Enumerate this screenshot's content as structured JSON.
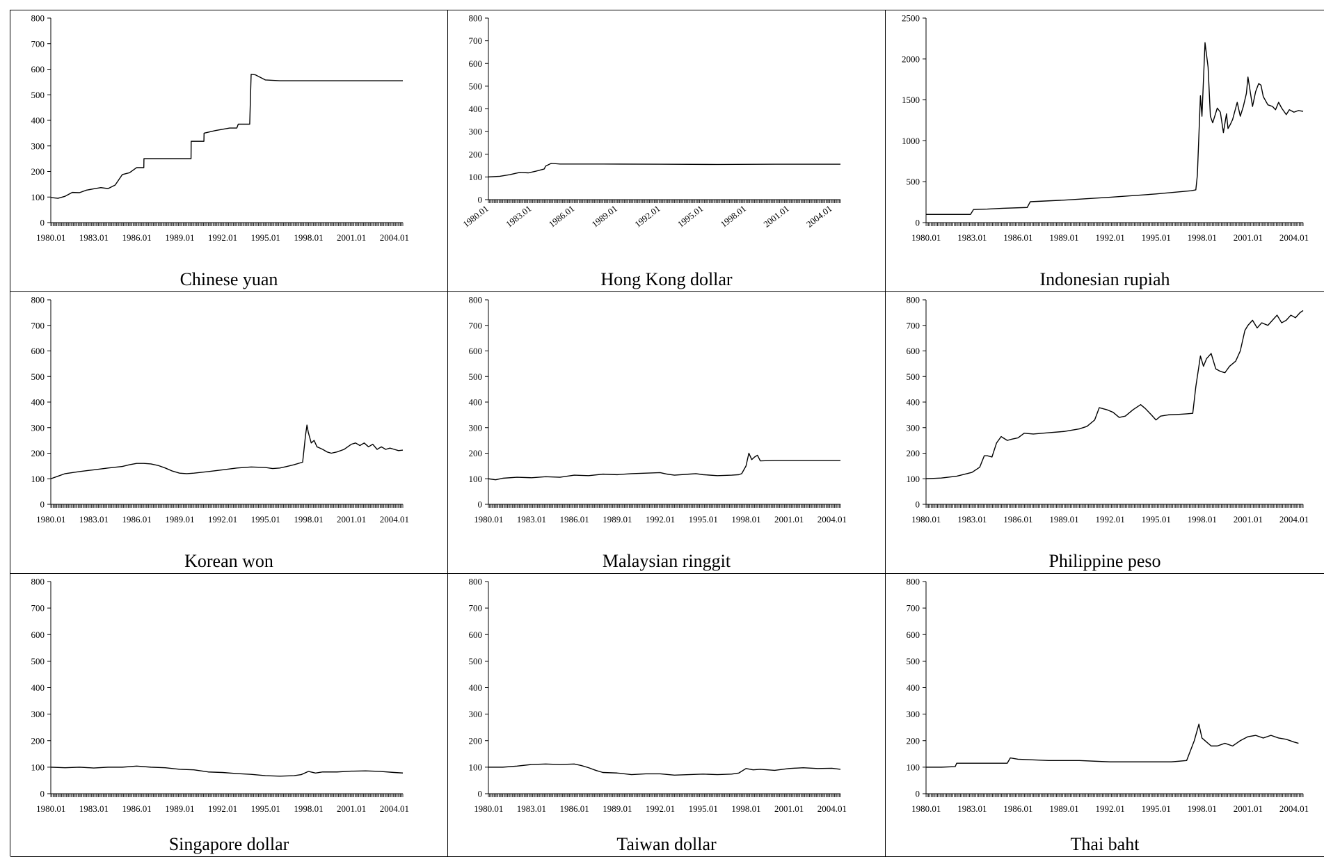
{
  "chart_data": [
    {
      "type": "line",
      "title": "Chinese yuan",
      "ylim": [
        0,
        800
      ],
      "yticks": [
        0,
        100,
        200,
        300,
        400,
        500,
        600,
        700,
        800
      ],
      "xticks": [
        "1980.01",
        "1983.01",
        "1986.01",
        "1989.01",
        "1992.01",
        "1995.01",
        "1998.01",
        "2001.01",
        "2004.01"
      ],
      "series": [
        {
          "x": [
            1980.0,
            1980.5,
            1981.0,
            1981.5,
            1982.0,
            1982.5,
            1983.0,
            1983.5,
            1984.0,
            1984.5,
            1985.0,
            1985.5,
            1986.0,
            1986.5,
            1986.51,
            1987.5,
            1988.5,
            1989.8,
            1989.81,
            1990.7,
            1990.71,
            1991.5,
            1992.5,
            1993.0,
            1993.1,
            1993.9,
            1994.0,
            1994.3,
            1995.0,
            1996.0,
            1998.0,
            2001.0,
            2004.6
          ],
          "y": [
            98,
            95,
            103,
            118,
            117,
            127,
            132,
            137,
            133,
            147,
            188,
            195,
            215,
            215,
            250,
            250,
            250,
            250,
            318,
            318,
            350,
            360,
            370,
            370,
            385,
            385,
            580,
            578,
            558,
            555,
            555,
            555,
            555
          ]
        }
      ]
    },
    {
      "type": "line",
      "title": "Hong Kong dollar",
      "ylim": [
        0,
        800
      ],
      "yticks": [
        0,
        100,
        200,
        300,
        400,
        500,
        600,
        700,
        800
      ],
      "xticks": [
        "1980.01",
        "1983.01",
        "1986.01",
        "1989.01",
        "1992.01",
        "1995.01",
        "1998.01",
        "2001.01",
        "2004.01"
      ],
      "series": [
        {
          "x": [
            1980.0,
            1980.8,
            1981.5,
            1982.2,
            1982.8,
            1983.3,
            1983.9,
            1984.0,
            1984.4,
            1985.0,
            1988.0,
            1992.0,
            1996.0,
            2000.0,
            2004.6
          ],
          "y": [
            100,
            103,
            110,
            120,
            118,
            125,
            135,
            148,
            160,
            157,
            157,
            156,
            155,
            156,
            156
          ]
        }
      ]
    },
    {
      "type": "line",
      "title": "Indonesian rupiah",
      "ylim": [
        0,
        2500
      ],
      "yticks": [
        0,
        500,
        1000,
        1500,
        2000,
        2500
      ],
      "xticks": [
        "1980.01",
        "1983.01",
        "1986.01",
        "1989.01",
        "1992.01",
        "1995.01",
        "1998.01",
        "2001.01",
        "2004.01"
      ],
      "series": [
        {
          "x": [
            1980.0,
            1982.9,
            1983.1,
            1984.0,
            1985.0,
            1986.6,
            1986.8,
            1989.0,
            1992.0,
            1995.0,
            1997.3,
            1997.6,
            1997.7,
            1997.9,
            1998.0,
            1998.2,
            1998.4,
            1998.55,
            1998.7,
            1999.0,
            1999.2,
            1999.4,
            1999.6,
            1999.7,
            1999.85,
            2000.0,
            2000.3,
            2000.5,
            2000.7,
            2000.9,
            2001.0,
            2001.3,
            2001.5,
            2001.7,
            2001.85,
            2002.0,
            2002.3,
            2002.6,
            2002.8,
            2003.0,
            2003.2,
            2003.5,
            2003.7,
            2004.0,
            2004.3,
            2004.6
          ],
          "y": [
            100,
            100,
            160,
            165,
            175,
            185,
            255,
            275,
            310,
            350,
            390,
            400,
            580,
            1550,
            1300,
            2200,
            1900,
            1300,
            1220,
            1400,
            1350,
            1100,
            1330,
            1150,
            1200,
            1260,
            1470,
            1300,
            1420,
            1580,
            1780,
            1420,
            1600,
            1700,
            1680,
            1540,
            1440,
            1420,
            1380,
            1470,
            1400,
            1320,
            1380,
            1350,
            1370,
            1360
          ]
        }
      ]
    },
    {
      "type": "line",
      "title": "Korean won",
      "ylim": [
        0,
        800
      ],
      "yticks": [
        0,
        100,
        200,
        300,
        400,
        500,
        600,
        700,
        800
      ],
      "xticks": [
        "1980.01",
        "1983.01",
        "1986.01",
        "1989.01",
        "1992.01",
        "1995.01",
        "1998.01",
        "2001.01",
        "2004.01"
      ],
      "series": [
        {
          "x": [
            1980.0,
            1980.5,
            1981.0,
            1982.0,
            1983.0,
            1984.0,
            1985.0,
            1985.5,
            1986.0,
            1986.5,
            1987.0,
            1987.5,
            1988.0,
            1988.5,
            1989.0,
            1989.5,
            1990.0,
            1991.0,
            1992.0,
            1993.0,
            1994.0,
            1995.0,
            1995.5,
            1996.0,
            1996.5,
            1997.0,
            1997.6,
            1997.8,
            1997.9,
            1998.0,
            1998.2,
            1998.4,
            1998.6,
            1998.8,
            1999.0,
            1999.3,
            1999.6,
            2000.0,
            2000.5,
            2001.0,
            2001.3,
            2001.6,
            2001.9,
            2002.2,
            2002.5,
            2002.8,
            2003.1,
            2003.4,
            2003.7,
            2004.0,
            2004.3,
            2004.6
          ],
          "y": [
            100,
            110,
            120,
            128,
            135,
            142,
            148,
            155,
            160,
            160,
            158,
            152,
            142,
            130,
            122,
            120,
            122,
            128,
            135,
            142,
            146,
            144,
            140,
            142,
            148,
            155,
            165,
            270,
            310,
            280,
            240,
            250,
            225,
            220,
            215,
            205,
            200,
            205,
            215,
            235,
            240,
            230,
            240,
            225,
            235,
            215,
            225,
            215,
            220,
            215,
            210,
            212
          ]
        }
      ]
    },
    {
      "type": "line",
      "title": "Malaysian ringgit",
      "ylim": [
        0,
        800
      ],
      "yticks": [
        0,
        100,
        200,
        300,
        400,
        500,
        600,
        700,
        800
      ],
      "xticks": [
        "1980.01",
        "1983.01",
        "1986.01",
        "1989.01",
        "1992.01",
        "1995.01",
        "1998.01",
        "2001.01",
        "2004.01"
      ],
      "series": [
        {
          "x": [
            1980.0,
            1980.5,
            1981.0,
            1982.0,
            1983.0,
            1984.0,
            1985.0,
            1986.0,
            1987.0,
            1988.0,
            1989.0,
            1990.0,
            1991.0,
            1992.0,
            1992.5,
            1993.0,
            1994.0,
            1994.5,
            1995.0,
            1996.0,
            1997.0,
            1997.5,
            1997.7,
            1998.0,
            1998.2,
            1998.4,
            1998.6,
            1998.8,
            1999.0,
            2000.0,
            2001.0,
            2002.0,
            2003.0,
            2004.6
          ],
          "y": [
            100,
            96,
            102,
            106,
            104,
            108,
            106,
            114,
            112,
            118,
            116,
            120,
            122,
            124,
            118,
            114,
            118,
            120,
            116,
            112,
            114,
            116,
            120,
            150,
            200,
            175,
            185,
            192,
            170,
            172,
            172,
            172,
            172,
            172
          ]
        }
      ]
    },
    {
      "type": "line",
      "title": "Philippine peso",
      "ylim": [
        0,
        800
      ],
      "yticks": [
        0,
        100,
        200,
        300,
        400,
        500,
        600,
        700,
        800
      ],
      "xticks": [
        "1980.01",
        "1983.01",
        "1986.01",
        "1989.01",
        "1992.01",
        "1995.01",
        "1998.01",
        "2001.01",
        "2004.01"
      ],
      "series": [
        {
          "x": [
            1980.0,
            1981.0,
            1982.0,
            1983.0,
            1983.5,
            1983.8,
            1984.0,
            1984.3,
            1984.6,
            1984.9,
            1985.3,
            1985.6,
            1986.0,
            1986.4,
            1987.0,
            1988.0,
            1989.0,
            1990.0,
            1990.5,
            1991.0,
            1991.3,
            1991.8,
            1992.2,
            1992.6,
            1993.0,
            1993.5,
            1994.0,
            1994.3,
            1994.7,
            1995.0,
            1995.3,
            1995.8,
            1996.5,
            1997.0,
            1997.4,
            1997.6,
            1997.9,
            1998.1,
            1998.3,
            1998.6,
            1998.9,
            1999.2,
            1999.5,
            1999.8,
            2000.2,
            2000.5,
            2000.8,
            2001.0,
            2001.3,
            2001.6,
            2001.9,
            2002.3,
            2002.6,
            2002.9,
            2003.2,
            2003.5,
            2003.8,
            2004.1,
            2004.4,
            2004.6
          ],
          "y": [
            100,
            103,
            110,
            125,
            145,
            190,
            190,
            185,
            240,
            265,
            250,
            255,
            260,
            278,
            275,
            280,
            285,
            295,
            305,
            330,
            378,
            370,
            360,
            340,
            345,
            370,
            390,
            375,
            350,
            330,
            345,
            350,
            352,
            354,
            356,
            460,
            580,
            540,
            570,
            590,
            530,
            520,
            515,
            540,
            560,
            600,
            680,
            700,
            720,
            690,
            710,
            700,
            720,
            740,
            710,
            720,
            740,
            730,
            750,
            758
          ]
        }
      ]
    },
    {
      "type": "line",
      "title": "Singapore dollar",
      "ylim": [
        0,
        800
      ],
      "yticks": [
        0,
        100,
        200,
        300,
        400,
        500,
        600,
        700,
        800
      ],
      "xticks": [
        "1980.01",
        "1983.01",
        "1986.01",
        "1989.01",
        "1992.01",
        "1995.01",
        "1998.01",
        "2001.01",
        "2004.01"
      ],
      "series": [
        {
          "x": [
            1980.0,
            1981.0,
            1982.0,
            1983.0,
            1984.0,
            1985.0,
            1986.0,
            1987.0,
            1988.0,
            1989.0,
            1990.0,
            1991.0,
            1992.0,
            1993.0,
            1994.0,
            1995.0,
            1996.0,
            1997.0,
            1997.5,
            1998.0,
            1998.5,
            1999.0,
            2000.0,
            2001.0,
            2002.0,
            2003.0,
            2004.0,
            2004.6
          ],
          "y": [
            100,
            98,
            100,
            97,
            100,
            100,
            104,
            100,
            98,
            92,
            90,
            82,
            80,
            76,
            73,
            68,
            66,
            68,
            72,
            84,
            78,
            82,
            82,
            85,
            86,
            84,
            80,
            78
          ]
        }
      ]
    },
    {
      "type": "line",
      "title": "Taiwan dollar",
      "ylim": [
        0,
        800
      ],
      "yticks": [
        0,
        100,
        200,
        300,
        400,
        500,
        600,
        700,
        800
      ],
      "xticks": [
        "1980.01",
        "1983.01",
        "1986.01",
        "1989.01",
        "1992.01",
        "1995.01",
        "1998.01",
        "2001.01",
        "2004.01"
      ],
      "series": [
        {
          "x": [
            1980.0,
            1981.0,
            1982.0,
            1983.0,
            1984.0,
            1985.0,
            1986.0,
            1986.5,
            1987.0,
            1987.5,
            1988.0,
            1989.0,
            1990.0,
            1991.0,
            1992.0,
            1993.0,
            1994.0,
            1995.0,
            1996.0,
            1997.0,
            1997.5,
            1998.0,
            1998.5,
            1999.0,
            2000.0,
            2001.0,
            2002.0,
            2003.0,
            2004.0,
            2004.6
          ],
          "y": [
            100,
            100,
            104,
            110,
            112,
            110,
            112,
            106,
            98,
            88,
            80,
            78,
            72,
            75,
            75,
            70,
            72,
            74,
            72,
            74,
            78,
            95,
            90,
            92,
            88,
            95,
            98,
            95,
            96,
            92
          ]
        }
      ]
    },
    {
      "type": "line",
      "title": "Thai baht",
      "ylim": [
        0,
        800
      ],
      "yticks": [
        0,
        100,
        200,
        300,
        400,
        500,
        600,
        700,
        800
      ],
      "xticks": [
        "1980.01",
        "1983.01",
        "1986.01",
        "1989.01",
        "1992.01",
        "1995.01",
        "1998.01",
        "2001.01",
        "2004.01"
      ],
      "series": [
        {
          "x": [
            1980.0,
            1981.0,
            1981.9,
            1982.0,
            1984.0,
            1985.0,
            1985.3,
            1985.5,
            1986.0,
            1988.0,
            1990.0,
            1992.0,
            1994.0,
            1996.0,
            1997.0,
            1997.5,
            1997.8,
            1998.0,
            1998.3,
            1998.6,
            1999.0,
            1999.5,
            2000.0,
            2000.5,
            2001.0,
            2001.5,
            2002.0,
            2002.5,
            2003.0,
            2003.5,
            2004.0,
            2004.3
          ],
          "y": [
            100,
            100,
            102,
            115,
            115,
            115,
            115,
            135,
            130,
            125,
            125,
            120,
            120,
            120,
            125,
            200,
            262,
            210,
            195,
            180,
            180,
            190,
            180,
            200,
            215,
            220,
            210,
            220,
            210,
            205,
            195,
            190
          ]
        }
      ]
    }
  ]
}
